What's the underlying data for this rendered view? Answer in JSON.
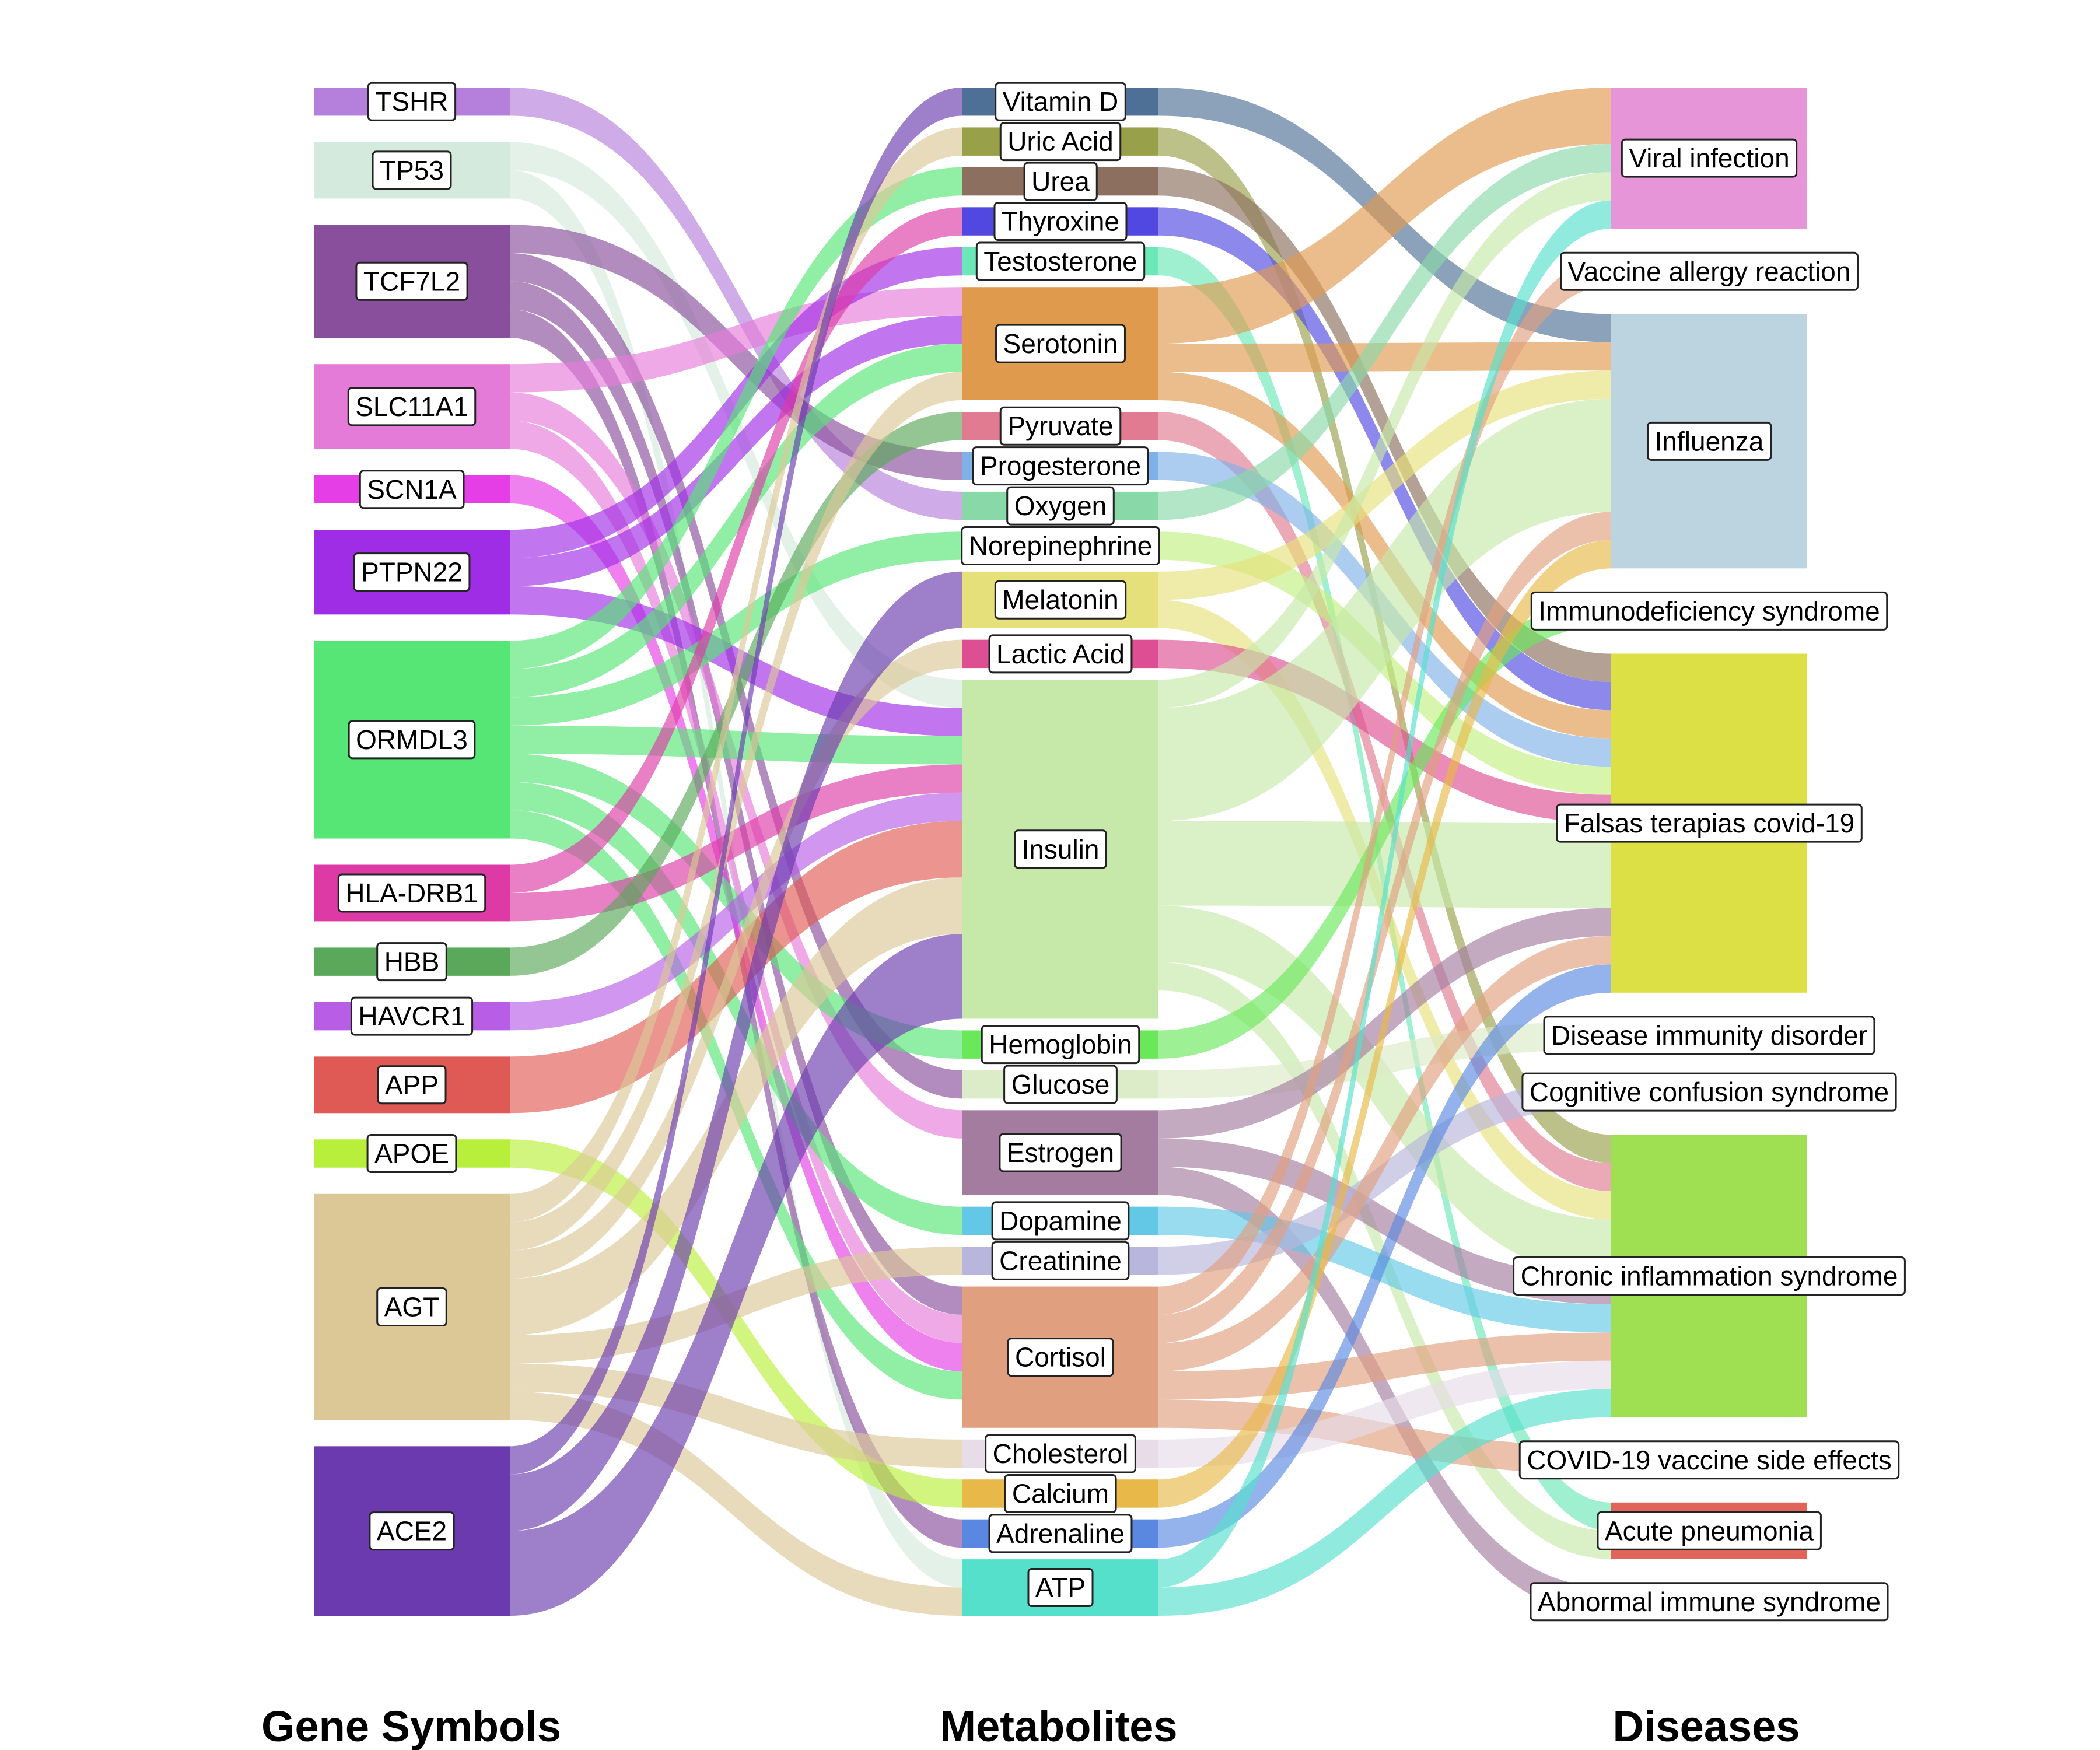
{
  "columns": {
    "genes": "Gene Symbols",
    "metabolites": "Metabolites",
    "diseases": "Diseases"
  },
  "genes": [
    {
      "id": "TSHR",
      "label": "TSHR",
      "color": "#b57fdc"
    },
    {
      "id": "TP53",
      "label": "TP53",
      "color": "#d4eadc"
    },
    {
      "id": "TCF7L2",
      "label": "TCF7L2",
      "color": "#8a4f9c"
    },
    {
      "id": "SLC11A1",
      "label": "SLC11A1",
      "color": "#e57bd8"
    },
    {
      "id": "SCN1A",
      "label": "SCN1A",
      "color": "#e63ee6"
    },
    {
      "id": "PTPN22",
      "label": "PTPN22",
      "color": "#a02de6"
    },
    {
      "id": "ORMDL3",
      "label": "ORMDL3",
      "color": "#55e675"
    },
    {
      "id": "HLA-DRB1",
      "label": "HLA-DRB1",
      "color": "#dd3aa6"
    },
    {
      "id": "HBB",
      "label": "HBB",
      "color": "#5aa85a"
    },
    {
      "id": "HAVCR1",
      "label": "HAVCR1",
      "color": "#b85ee6"
    },
    {
      "id": "APP",
      "label": "APP",
      "color": "#e05a55"
    },
    {
      "id": "APOE",
      "label": "APOE",
      "color": "#b8ef3a"
    },
    {
      "id": "AGT",
      "label": "AGT",
      "color": "#dcc896"
    },
    {
      "id": "ACE2",
      "label": "ACE2",
      "color": "#6a3aae"
    }
  ],
  "metabolites": [
    {
      "id": "Vitamin D",
      "label": "Vitamin D",
      "color": "#4f7096"
    },
    {
      "id": "Uric Acid",
      "label": "Uric Acid",
      "color": "#98a04a"
    },
    {
      "id": "Urea",
      "label": "Urea",
      "color": "#8c6f5e"
    },
    {
      "id": "Thyroxine",
      "label": "Thyroxine",
      "color": "#5048e0"
    },
    {
      "id": "Testosterone",
      "label": "Testosterone",
      "color": "#6ce8b8"
    },
    {
      "id": "Serotonin",
      "label": "Serotonin",
      "color": "#e09a4e"
    },
    {
      "id": "Pyruvate",
      "label": "Pyruvate",
      "color": "#e07b92"
    },
    {
      "id": "Progesterone",
      "label": "Progesterone",
      "color": "#7fb0e8"
    },
    {
      "id": "Oxygen",
      "label": "Oxygen",
      "color": "#88d8a8"
    },
    {
      "id": "Norepinephrine",
      "label": "Norepinephrine",
      "color": "#c2ef80"
    },
    {
      "id": "Melatonin",
      "label": "Melatonin",
      "color": "#e6e07a"
    },
    {
      "id": "Lactic Acid",
      "label": "Lactic Acid",
      "color": "#dd4f92"
    },
    {
      "id": "Insulin",
      "label": "Insulin",
      "color": "#c6e8a8"
    },
    {
      "id": "Hemoglobin",
      "label": "Hemoglobin",
      "color": "#6ae85a"
    },
    {
      "id": "Glucose",
      "label": "Glucose",
      "color": "#dcebc8"
    },
    {
      "id": "Estrogen",
      "label": "Estrogen",
      "color": "#a47ca0"
    },
    {
      "id": "Dopamine",
      "label": "Dopamine",
      "color": "#62c8e6"
    },
    {
      "id": "Creatinine",
      "label": "Creatinine",
      "color": "#b8b6dc"
    },
    {
      "id": "Cortisol",
      "label": "Cortisol",
      "color": "#e0a080"
    },
    {
      "id": "Cholesterol",
      "label": "Cholesterol",
      "color": "#e8dce8"
    },
    {
      "id": "Calcium",
      "label": "Calcium",
      "color": "#e8b848"
    },
    {
      "id": "Adrenaline",
      "label": "Adrenaline",
      "color": "#5a88e0"
    },
    {
      "id": "ATP",
      "label": "ATP",
      "color": "#55e0cc"
    }
  ],
  "diseases": [
    {
      "id": "Viral infection",
      "label": "Viral infection",
      "color": "#e595d8"
    },
    {
      "id": "Vaccine allergy reaction",
      "label": "Vaccine allergy reaction",
      "color": "#ffffff"
    },
    {
      "id": "Influenza",
      "label": "Influenza",
      "color": "#bcd4e0"
    },
    {
      "id": "Immunodeficiency syndrome",
      "label": "Immunodeficiency syndrome",
      "color": "#ffffff"
    },
    {
      "id": "Falsas terapias covid-19",
      "label": "Falsas terapias covid-19",
      "color": "#dde045"
    },
    {
      "id": "Disease immunity disorder",
      "label": "Disease immunity disorder",
      "color": "#ffffff"
    },
    {
      "id": "Cognitive confusion syndrome",
      "label": "Cognitive confusion syndrome",
      "color": "#ffffff"
    },
    {
      "id": "Chronic inflammation syndrome",
      "label": "Chronic inflammation syndrome",
      "color": "#9ee052"
    },
    {
      "id": "COVID-19 vaccine side effects",
      "label": "COVID-19 vaccine side effects",
      "color": "#e8a88a"
    },
    {
      "id": "Acute pneumonia",
      "label": "Acute pneumonia",
      "color": "#e0645a"
    },
    {
      "id": "Abnormal immune syndrome",
      "label": "Abnormal immune syndrome",
      "color": "#5548c8"
    }
  ],
  "links_gene_to_metabolite": [
    [
      "TSHR",
      "Oxygen",
      1
    ],
    [
      "TP53",
      "Insulin",
      1
    ],
    [
      "TP53",
      "ATP",
      1
    ],
    [
      "TCF7L2",
      "Progesterone",
      1
    ],
    [
      "TCF7L2",
      "Glucose",
      1
    ],
    [
      "TCF7L2",
      "Cortisol",
      1
    ],
    [
      "TCF7L2",
      "Adrenaline",
      1
    ],
    [
      "SLC11A1",
      "Serotonin",
      1
    ],
    [
      "SLC11A1",
      "Estrogen",
      1
    ],
    [
      "SLC11A1",
      "Cortisol",
      1
    ],
    [
      "SCN1A",
      "Cortisol",
      1
    ],
    [
      "PTPN22",
      "Testosterone",
      1
    ],
    [
      "PTPN22",
      "Serotonin",
      1
    ],
    [
      "PTPN22",
      "Insulin",
      1
    ],
    [
      "ORMDL3",
      "Urea",
      1
    ],
    [
      "ORMDL3",
      "Serotonin",
      1
    ],
    [
      "ORMDL3",
      "Norepinephrine",
      1
    ],
    [
      "ORMDL3",
      "Insulin",
      1
    ],
    [
      "ORMDL3",
      "Hemoglobin",
      1
    ],
    [
      "ORMDL3",
      "Dopamine",
      1
    ],
    [
      "ORMDL3",
      "Cortisol",
      1
    ],
    [
      "HLA-DRB1",
      "Thyroxine",
      1
    ],
    [
      "HLA-DRB1",
      "Insulin",
      1
    ],
    [
      "HBB",
      "Pyruvate",
      1
    ],
    [
      "HAVCR1",
      "Insulin",
      1
    ],
    [
      "APP",
      "Insulin",
      2
    ],
    [
      "APOE",
      "Calcium",
      1
    ],
    [
      "AGT",
      "Uric Acid",
      1
    ],
    [
      "AGT",
      "Serotonin",
      1
    ],
    [
      "AGT",
      "Lactic Acid",
      1
    ],
    [
      "AGT",
      "Insulin",
      2
    ],
    [
      "AGT",
      "Creatinine",
      1
    ],
    [
      "AGT",
      "Cholesterol",
      1
    ],
    [
      "AGT",
      "ATP",
      1
    ],
    [
      "ACE2",
      "Vitamin D",
      1
    ],
    [
      "ACE2",
      "Melatonin",
      2
    ],
    [
      "ACE2",
      "Insulin",
      3
    ]
  ],
  "links_metabolite_to_disease": [
    [
      "Vitamin D",
      "Influenza",
      1
    ],
    [
      "Uric Acid",
      "Chronic inflammation syndrome",
      1
    ],
    [
      "Urea",
      "Falsas terapias covid-19",
      1
    ],
    [
      "Thyroxine",
      "Falsas terapias covid-19",
      1
    ],
    [
      "Testosterone",
      "Acute pneumonia",
      1
    ],
    [
      "Serotonin",
      "Viral infection",
      2
    ],
    [
      "Serotonin",
      "Influenza",
      1
    ],
    [
      "Serotonin",
      "Falsas terapias covid-19",
      1
    ],
    [
      "Pyruvate",
      "Chronic inflammation syndrome",
      1
    ],
    [
      "Progesterone",
      "Falsas terapias covid-19",
      1
    ],
    [
      "Oxygen",
      "Viral infection",
      1
    ],
    [
      "Norepinephrine",
      "Falsas terapias covid-19",
      1
    ],
    [
      "Melatonin",
      "Influenza",
      1
    ],
    [
      "Melatonin",
      "Chronic inflammation syndrome",
      1
    ],
    [
      "Lactic Acid",
      "Falsas terapias covid-19",
      1
    ],
    [
      "Insulin",
      "Viral infection",
      1
    ],
    [
      "Insulin",
      "Influenza",
      4
    ],
    [
      "Insulin",
      "Falsas terapias covid-19",
      3
    ],
    [
      "Insulin",
      "Chronic inflammation syndrome",
      2
    ],
    [
      "Insulin",
      "Acute pneumonia",
      1
    ],
    [
      "Hemoglobin",
      "Immunodeficiency syndrome",
      1
    ],
    [
      "Glucose",
      "Disease immunity disorder",
      1
    ],
    [
      "Estrogen",
      "Falsas terapias covid-19",
      1
    ],
    [
      "Estrogen",
      "Chronic inflammation syndrome",
      1
    ],
    [
      "Estrogen",
      "Abnormal immune syndrome",
      1
    ],
    [
      "Dopamine",
      "Chronic inflammation syndrome",
      1
    ],
    [
      "Creatinine",
      "Cognitive confusion syndrome",
      1
    ],
    [
      "Cortisol",
      "Vaccine allergy reaction",
      1
    ],
    [
      "Cortisol",
      "Influenza",
      1
    ],
    [
      "Cortisol",
      "Falsas terapias covid-19",
      1
    ],
    [
      "Cortisol",
      "Chronic inflammation syndrome",
      1
    ],
    [
      "Cortisol",
      "COVID-19 vaccine side effects",
      1
    ],
    [
      "Cholesterol",
      "Chronic inflammation syndrome",
      1
    ],
    [
      "Calcium",
      "Influenza",
      1
    ],
    [
      "Adrenaline",
      "Falsas terapias covid-19",
      1
    ],
    [
      "ATP",
      "Viral infection",
      1
    ],
    [
      "ATP",
      "Chronic inflammation syndrome",
      1
    ]
  ]
}
